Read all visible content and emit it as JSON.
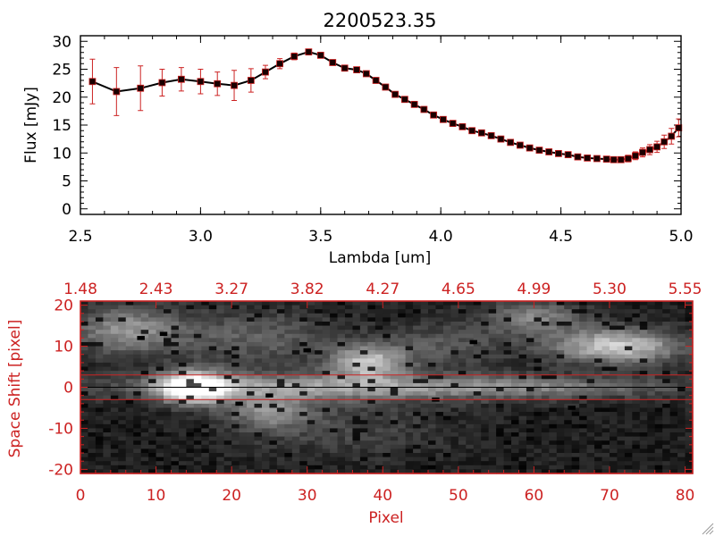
{
  "colors": {
    "accent_red": "#cc2222",
    "line_black": "#000000",
    "background": "#ffffff"
  },
  "chart_data": [
    {
      "type": "line",
      "title": "2200523.35",
      "xlabel": "Lambda [um]",
      "ylabel": "Flux [mJy]",
      "xlim": [
        2.5,
        5.0
      ],
      "ylim": [
        -1,
        31
      ],
      "x_ticks": [
        "2.5",
        "3.0",
        "3.5",
        "4.0",
        "4.5",
        "5.0"
      ],
      "x_tick_values": [
        2.5,
        3.0,
        3.5,
        4.0,
        4.5,
        5.0
      ],
      "y_ticks": [
        "0",
        "5",
        "10",
        "15",
        "20",
        "25",
        "30"
      ],
      "y_tick_values": [
        0,
        5,
        10,
        15,
        20,
        25,
        30
      ],
      "series": [
        {
          "name": "flux",
          "x": [
            2.55,
            2.65,
            2.75,
            2.84,
            2.92,
            3.0,
            3.07,
            3.14,
            3.21,
            3.27,
            3.33,
            3.39,
            3.45,
            3.5,
            3.55,
            3.6,
            3.65,
            3.69,
            3.73,
            3.77,
            3.81,
            3.85,
            3.89,
            3.93,
            3.97,
            4.01,
            4.05,
            4.09,
            4.13,
            4.17,
            4.21,
            4.25,
            4.29,
            4.33,
            4.37,
            4.41,
            4.45,
            4.49,
            4.53,
            4.57,
            4.61,
            4.65,
            4.69,
            4.72,
            4.75,
            4.78,
            4.81,
            4.84,
            4.87,
            4.9,
            4.93,
            4.96,
            4.99
          ],
          "y": [
            22.8,
            21.0,
            21.6,
            22.6,
            23.2,
            22.8,
            22.4,
            22.1,
            23.0,
            24.5,
            26.0,
            27.3,
            28.1,
            27.5,
            26.2,
            25.2,
            24.9,
            24.2,
            23.0,
            21.8,
            20.5,
            19.6,
            18.7,
            17.8,
            16.8,
            16.0,
            15.3,
            14.7,
            14.0,
            13.6,
            13.1,
            12.5,
            11.9,
            11.4,
            10.9,
            10.5,
            10.2,
            9.9,
            9.7,
            9.3,
            9.1,
            9.0,
            8.9,
            8.8,
            8.8,
            9.0,
            9.5,
            10.1,
            10.6,
            11.1,
            12.0,
            13.0,
            14.5
          ],
          "err": [
            4.0,
            4.3,
            4.0,
            2.4,
            2.1,
            2.2,
            2.1,
            2.7,
            2.1,
            1.2,
            0.9,
            0.6,
            0.4,
            0.4,
            0.4,
            0.4,
            0.4,
            0.4,
            0.4,
            0.4,
            0.4,
            0.4,
            0.4,
            0.4,
            0.4,
            0.4,
            0.4,
            0.4,
            0.4,
            0.4,
            0.4,
            0.4,
            0.4,
            0.4,
            0.4,
            0.4,
            0.4,
            0.4,
            0.4,
            0.4,
            0.4,
            0.4,
            0.4,
            0.4,
            0.4,
            0.6,
            0.7,
            0.8,
            0.9,
            1.0,
            1.2,
            1.4,
            1.6
          ]
        }
      ]
    },
    {
      "type": "heatmap",
      "title": "",
      "xlabel": "Pixel",
      "ylabel": "Space Shift [pixel]",
      "xlim": [
        0,
        81
      ],
      "ylim": [
        -21,
        21
      ],
      "x_ticks": [
        "0",
        "10",
        "20",
        "30",
        "40",
        "50",
        "60",
        "70",
        "80"
      ],
      "x_tick_values": [
        0,
        10,
        20,
        30,
        40,
        50,
        60,
        70,
        80
      ],
      "y_ticks": [
        "-20",
        "-10",
        "0",
        "10",
        "20"
      ],
      "y_tick_values": [
        -20,
        -10,
        0,
        10,
        20
      ],
      "top_axis_ticks": [
        "1.48",
        "2.43",
        "3.27",
        "3.82",
        "4.27",
        "4.65",
        "4.99",
        "5.30",
        "5.55"
      ],
      "top_axis_tick_values": [
        0,
        10,
        20,
        30,
        40,
        50,
        60,
        70,
        80
      ],
      "aperture_lines": [
        3,
        -3
      ],
      "center_line": 0,
      "grid": {
        "columns": 81,
        "rows": 42
      },
      "blobs": [
        {
          "x": 15,
          "y": 0,
          "sx": 3.2,
          "sy": 2.6,
          "amp": 1.0
        },
        {
          "x": 28,
          "y": 0,
          "sx": 18,
          "sy": 2.4,
          "amp": 0.42
        },
        {
          "x": 60,
          "y": 0,
          "sx": 16,
          "sy": 2.0,
          "amp": 0.32
        },
        {
          "x": 6,
          "y": 14,
          "sx": 5.0,
          "sy": 4.0,
          "amp": 0.45
        },
        {
          "x": 38,
          "y": 6,
          "sx": 3.5,
          "sy": 2.8,
          "amp": 0.62
        },
        {
          "x": 71,
          "y": 10,
          "sx": 6.0,
          "sy": 3.0,
          "amp": 0.68
        },
        {
          "x": 60,
          "y": 17,
          "sx": 4.5,
          "sy": 3.0,
          "amp": 0.38
        },
        {
          "x": 23,
          "y": 12,
          "sx": 8.0,
          "sy": 5.0,
          "amp": 0.25
        },
        {
          "x": 25,
          "y": -6,
          "sx": 4.0,
          "sy": 3.0,
          "amp": 0.38
        },
        {
          "x": 48,
          "y": 10,
          "sx": 6.0,
          "sy": 4.0,
          "amp": 0.22
        },
        {
          "x": 35,
          "y": -10,
          "sx": 10.0,
          "sy": 5.0,
          "amp": 0.15
        }
      ],
      "dark_spots": [
        {
          "x": 8,
          "y": 12
        },
        {
          "x": 11,
          "y": 13
        },
        {
          "x": 25,
          "y": -2
        },
        {
          "x": 21,
          "y": -4
        },
        {
          "x": 47,
          "y": -3
        },
        {
          "x": 30,
          "y": 9
        },
        {
          "x": 52,
          "y": 11
        },
        {
          "x": 65,
          "y": -5
        }
      ]
    }
  ]
}
